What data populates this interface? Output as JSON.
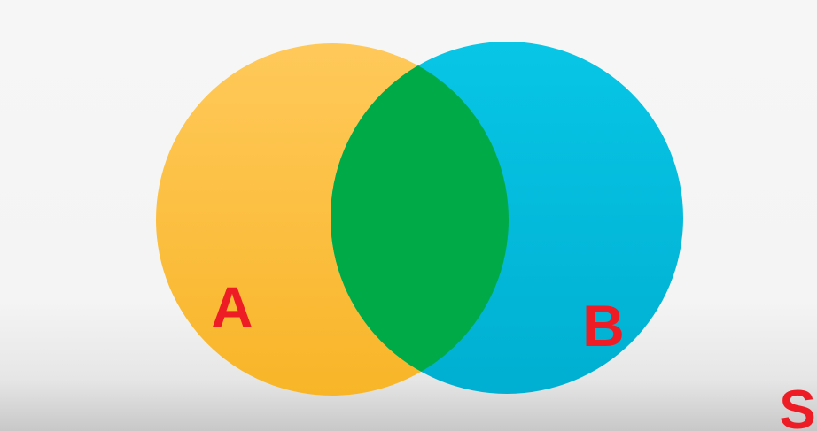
{
  "diagram": {
    "set_a": {
      "label": "A",
      "fill": "#FEBE3C",
      "fill_light": "#FFC95A",
      "fill_dark": "#F8B528"
    },
    "set_b": {
      "label": "B",
      "fill": "#00BEDF",
      "fill_light": "#08C6E6",
      "fill_dark": "#00AFD1"
    },
    "intersection": {
      "fill": "#00AB47"
    },
    "universe": {
      "label": "S"
    },
    "label_color": "#EE1C24"
  }
}
